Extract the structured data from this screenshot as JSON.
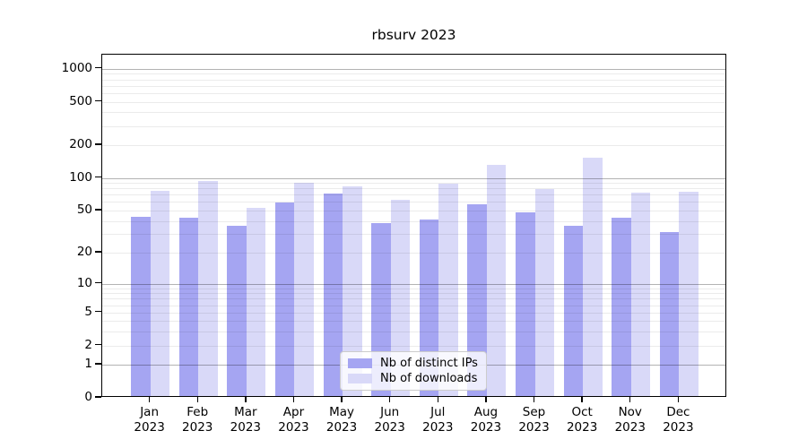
{
  "chart_data": {
    "type": "bar",
    "title": "rbsurv 2023",
    "categories": [
      "Jan",
      "Feb",
      "Mar",
      "Apr",
      "May",
      "Jun",
      "Jul",
      "Aug",
      "Sep",
      "Oct",
      "Nov",
      "Dec"
    ],
    "xtick_year": "2023",
    "series": [
      {
        "name": "Nb of distinct IPs",
        "color": "#a5a5f2",
        "values": [
          42,
          41,
          35,
          57,
          69,
          37,
          40,
          55,
          46,
          35,
          41,
          30
        ]
      },
      {
        "name": "Nb of downloads",
        "color": "#d9d9f8",
        "values": [
          74,
          90,
          51,
          87,
          80,
          61,
          85,
          128,
          76,
          148,
          71,
          72
        ]
      }
    ],
    "yscale": "log10(value+1)",
    "ylim": [
      0,
      1345
    ],
    "yticks": [
      1000,
      500,
      200,
      100,
      50,
      20,
      10,
      5,
      2,
      1,
      0
    ],
    "major_gridlines": [
      1,
      10,
      100,
      1000
    ],
    "minor_gridlines": [
      2,
      3,
      4,
      5,
      6,
      7,
      8,
      9,
      20,
      30,
      40,
      50,
      60,
      70,
      80,
      90,
      200,
      300,
      400,
      500,
      600,
      700,
      800,
      900
    ],
    "grid": true,
    "legend_position": "lower center",
    "colors": {
      "major_grid": "#b3b3b3",
      "minor_grid": "#ebebeb",
      "spine": "#000000",
      "background": "#ffffff"
    }
  }
}
